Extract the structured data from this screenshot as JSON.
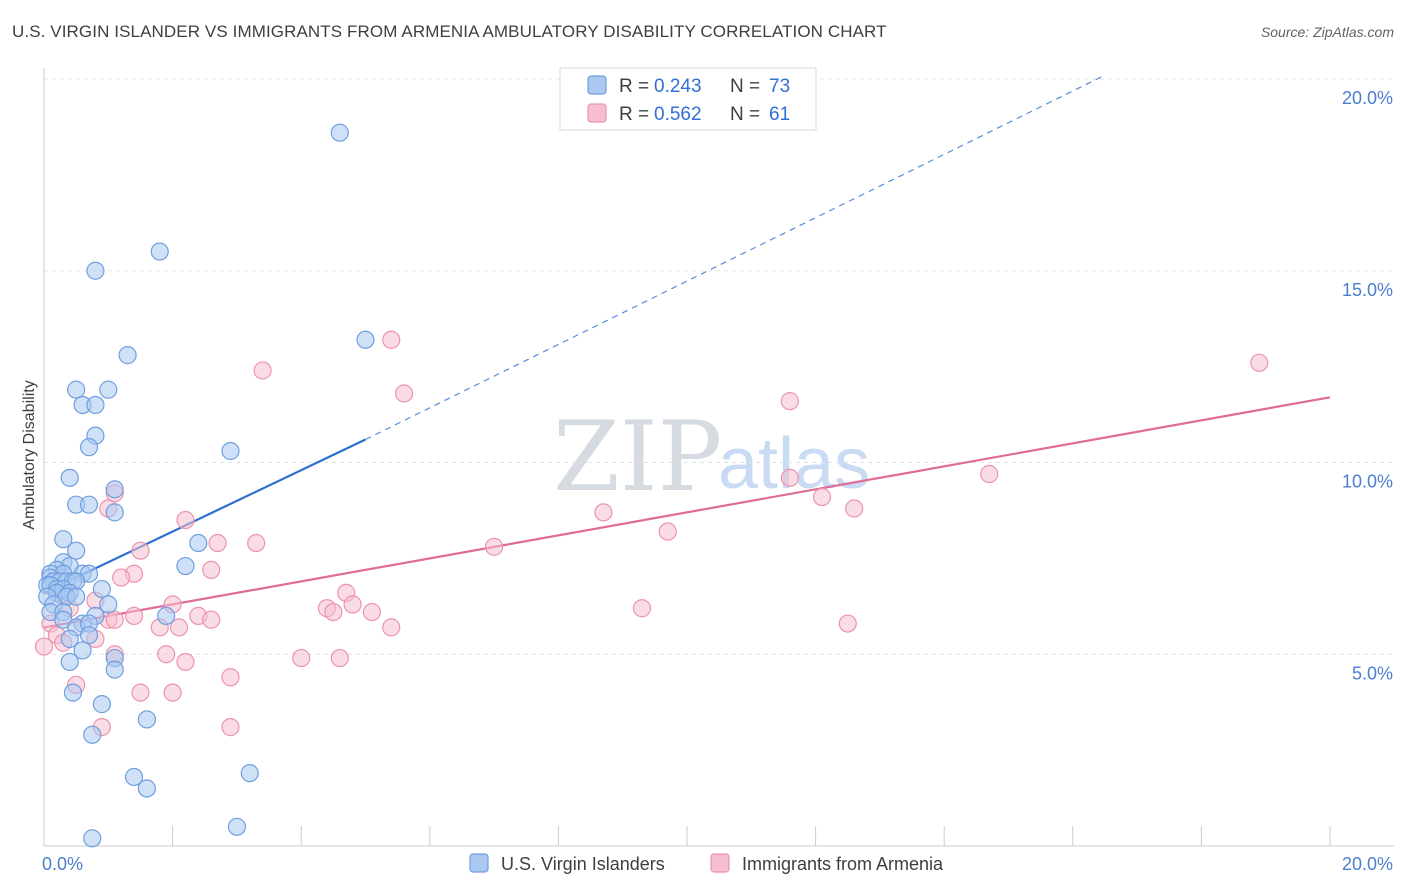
{
  "header": {
    "title": "U.S. VIRGIN ISLANDER VS IMMIGRANTS FROM ARMENIA AMBULATORY DISABILITY CORRELATION CHART",
    "source": "Source: ZipAtlas.com"
  },
  "watermark": {
    "zip": "ZIP",
    "atlas": "atlas"
  },
  "legend": {
    "entries": [
      {
        "r_label": "R =",
        "r_value": "0.243",
        "n_label": "N =",
        "n_value": "73"
      },
      {
        "r_label": "R =",
        "r_value": "0.562",
        "n_label": "N =",
        "n_value": "61"
      }
    ]
  },
  "bottom_legend": {
    "series1": "U.S. Virgin Islanders",
    "series2": "Immigrants from Armenia"
  },
  "colors": {
    "series1_fill": "#aac8f0",
    "series1_stroke": "#6f9fe0",
    "series1_line": "#2c6fd0",
    "series2_fill": "#f6bfd0",
    "series2_stroke": "#ec93b0",
    "series2_line": "#e06b98",
    "grid": "#dde1e6",
    "axis": "#c8ccd2"
  },
  "chart_data": {
    "type": "scatter",
    "title": "U.S. VIRGIN ISLANDER VS IMMIGRANTS FROM ARMENIA AMBULATORY DISABILITY CORRELATION CHART",
    "xlabel": "",
    "ylabel": "Ambulatory Disability",
    "xlim": [
      0,
      20
    ],
    "ylim": [
      0,
      20.5
    ],
    "x_tick_labels": [
      "0.0%",
      "20.0%"
    ],
    "y_ticks": [
      5,
      10,
      15,
      20
    ],
    "y_tick_labels": [
      "5.0%",
      "10.0%",
      "15.0%",
      "20.0%"
    ],
    "series": [
      {
        "name": "U.S. Virgin Islanders",
        "r": 0.243,
        "n": 73,
        "trend": {
          "x0": 0.0,
          "y0": 6.6,
          "x1": 5.0,
          "y1": 10.6,
          "dash_to_x": 16.5,
          "dash_to_y": 20.1
        },
        "points": [
          [
            4.6,
            18.6
          ],
          [
            1.8,
            15.5
          ],
          [
            0.8,
            15.0
          ],
          [
            5.0,
            13.2
          ],
          [
            1.3,
            12.8
          ],
          [
            0.5,
            11.9
          ],
          [
            1.0,
            11.9
          ],
          [
            0.6,
            11.5
          ],
          [
            0.8,
            11.5
          ],
          [
            0.8,
            10.7
          ],
          [
            0.7,
            10.4
          ],
          [
            2.9,
            10.3
          ],
          [
            0.4,
            9.6
          ],
          [
            1.1,
            9.3
          ],
          [
            0.5,
            8.9
          ],
          [
            0.7,
            8.9
          ],
          [
            1.1,
            8.7
          ],
          [
            0.3,
            8.0
          ],
          [
            2.4,
            7.9
          ],
          [
            0.5,
            7.7
          ],
          [
            0.3,
            7.4
          ],
          [
            0.4,
            7.3
          ],
          [
            2.2,
            7.3
          ],
          [
            0.2,
            7.2
          ],
          [
            0.1,
            7.1
          ],
          [
            0.3,
            7.1
          ],
          [
            0.6,
            7.1
          ],
          [
            0.7,
            7.1
          ],
          [
            0.1,
            7.0
          ],
          [
            0.15,
            6.9
          ],
          [
            0.25,
            6.9
          ],
          [
            0.35,
            6.9
          ],
          [
            0.45,
            6.9
          ],
          [
            0.5,
            6.9
          ],
          [
            0.05,
            6.8
          ],
          [
            0.1,
            6.8
          ],
          [
            0.2,
            6.7
          ],
          [
            0.3,
            6.7
          ],
          [
            0.9,
            6.7
          ],
          [
            0.2,
            6.6
          ],
          [
            0.4,
            6.6
          ],
          [
            0.05,
            6.5
          ],
          [
            0.35,
            6.5
          ],
          [
            0.5,
            6.5
          ],
          [
            0.15,
            6.3
          ],
          [
            1.0,
            6.3
          ],
          [
            0.1,
            6.1
          ],
          [
            0.3,
            6.1
          ],
          [
            0.8,
            6.0
          ],
          [
            1.9,
            6.0
          ],
          [
            0.3,
            5.9
          ],
          [
            0.6,
            5.8
          ],
          [
            0.5,
            5.7
          ],
          [
            0.7,
            5.8
          ],
          [
            0.7,
            5.5
          ],
          [
            0.4,
            5.4
          ],
          [
            0.6,
            5.1
          ],
          [
            1.1,
            4.9
          ],
          [
            0.4,
            4.8
          ],
          [
            1.1,
            4.6
          ],
          [
            0.45,
            4.0
          ],
          [
            0.9,
            3.7
          ],
          [
            1.6,
            3.3
          ],
          [
            0.75,
            2.9
          ],
          [
            1.4,
            1.8
          ],
          [
            3.2,
            1.9
          ],
          [
            1.6,
            1.5
          ],
          [
            3.0,
            0.5
          ],
          [
            0.75,
            0.2
          ]
        ]
      },
      {
        "name": "Immigrants from Armenia",
        "r": 0.562,
        "n": 61,
        "trend": {
          "x0": 0.0,
          "y0": 5.7,
          "x1": 20.0,
          "y1": 11.7
        },
        "points": [
          [
            5.4,
            13.2
          ],
          [
            3.4,
            12.4
          ],
          [
            18.9,
            12.6
          ],
          [
            5.6,
            11.8
          ],
          [
            11.6,
            11.6
          ],
          [
            14.7,
            9.7
          ],
          [
            11.6,
            9.6
          ],
          [
            1.1,
            9.2
          ],
          [
            12.1,
            9.1
          ],
          [
            1.0,
            8.8
          ],
          [
            2.2,
            8.5
          ],
          [
            12.6,
            8.8
          ],
          [
            8.7,
            8.7
          ],
          [
            9.7,
            8.2
          ],
          [
            2.7,
            7.9
          ],
          [
            3.3,
            7.9
          ],
          [
            7.0,
            7.8
          ],
          [
            1.5,
            7.7
          ],
          [
            2.6,
            7.2
          ],
          [
            1.4,
            7.1
          ],
          [
            1.2,
            7.0
          ],
          [
            4.7,
            6.6
          ],
          [
            0.3,
            6.5
          ],
          [
            0.8,
            6.4
          ],
          [
            2.0,
            6.3
          ],
          [
            4.8,
            6.3
          ],
          [
            0.4,
            6.2
          ],
          [
            4.4,
            6.2
          ],
          [
            4.5,
            6.1
          ],
          [
            5.1,
            6.1
          ],
          [
            9.3,
            6.2
          ],
          [
            1.4,
            6.0
          ],
          [
            2.4,
            6.0
          ],
          [
            1.0,
            5.9
          ],
          [
            1.1,
            5.9
          ],
          [
            2.6,
            5.9
          ],
          [
            1.8,
            5.7
          ],
          [
            2.1,
            5.7
          ],
          [
            5.4,
            5.7
          ],
          [
            12.5,
            5.8
          ],
          [
            0.1,
            5.8
          ],
          [
            0.2,
            5.5
          ],
          [
            0.3,
            5.3
          ],
          [
            0.0,
            5.2
          ],
          [
            0.8,
            5.4
          ],
          [
            1.1,
            5.0
          ],
          [
            1.9,
            5.0
          ],
          [
            2.2,
            4.8
          ],
          [
            4.0,
            4.9
          ],
          [
            4.6,
            4.9
          ],
          [
            2.9,
            4.4
          ],
          [
            0.5,
            4.2
          ],
          [
            1.5,
            4.0
          ],
          [
            2.0,
            4.0
          ],
          [
            2.9,
            3.1
          ],
          [
            0.9,
            3.1
          ]
        ]
      }
    ]
  }
}
